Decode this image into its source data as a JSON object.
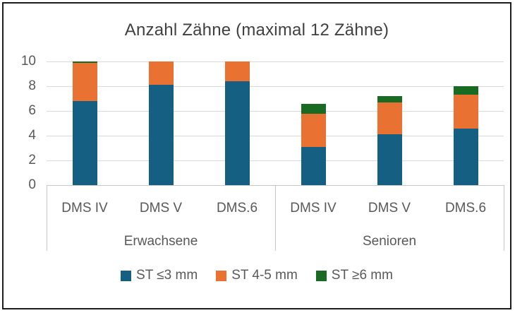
{
  "frame": {
    "background": "#ffffff",
    "border_color": "#1c1c1c"
  },
  "chart_data": {
    "type": "bar",
    "stacked": true,
    "title": "Anzahl Zähne (maximal 12 Zähne)",
    "title_color": "#404040",
    "text_color": "#595959",
    "grid": true,
    "grid_color": "#d9d9d9",
    "axis_line_color": "#c9c9c9",
    "legend_position": "bottom",
    "categories": [
      "DMS IV",
      "DMS V",
      "DMS.6",
      "DMS IV",
      "DMS V",
      "DMS.6"
    ],
    "groups": [
      {
        "label": "Erwachsene",
        "span": [
          0,
          2
        ]
      },
      {
        "label": "Senioren",
        "span": [
          3,
          5
        ]
      }
    ],
    "series": [
      {
        "name": "ST ≤3 mm",
        "color": "#156082",
        "values": [
          6.8,
          8.1,
          8.4,
          3.1,
          4.1,
          4.6
        ]
      },
      {
        "name": "ST 4-5 mm",
        "color": "#E97132",
        "values": [
          3.1,
          1.9,
          1.6,
          2.7,
          2.6,
          2.7
        ]
      },
      {
        "name": "ST ≥6 mm",
        "color": "#196B24",
        "values": [
          0.1,
          0.0,
          0.0,
          0.8,
          0.5,
          0.7
        ]
      }
    ],
    "stack_totals": [
      10.0,
      10.0,
      10.0,
      6.6,
      7.2,
      8.0
    ],
    "y_axis": {
      "min": 0,
      "max": 10,
      "ticks": [
        0,
        2,
        4,
        6,
        8,
        10
      ]
    }
  }
}
